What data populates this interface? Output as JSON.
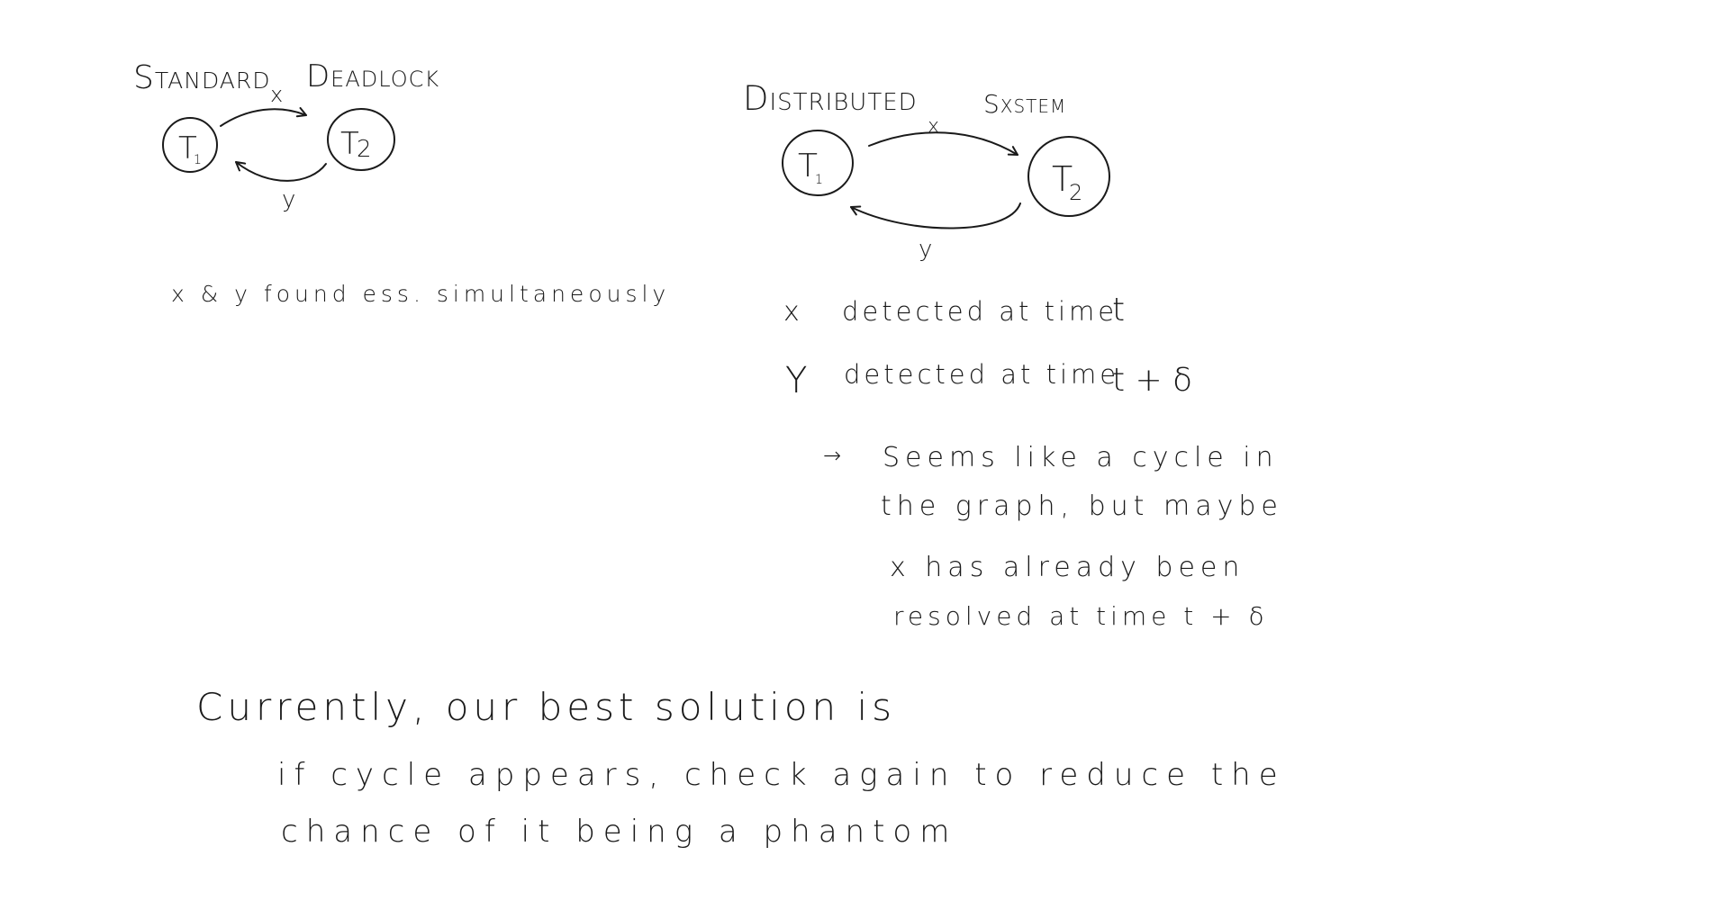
{
  "standard": {
    "title_left": "Standard",
    "title_right": "Deadlock",
    "node1": "T",
    "node1_sub": "1",
    "node2": "T",
    "node2_sub": "2",
    "edge_top": "x",
    "edge_bottom": "y",
    "note": "x & y found ess. simultaneously"
  },
  "distributed": {
    "title_left": "Distributed",
    "title_right": "Sxstem",
    "node1": "T",
    "node1_sub": "1",
    "node2": "T",
    "node2_sub": "2",
    "edge_top": "x",
    "edge_bottom": "y",
    "line_x_var": "x",
    "line_x_text": "detected at time",
    "line_x_time": "t",
    "line_y_var": "Y",
    "line_y_text": "detected at time",
    "line_y_time": "t + δ",
    "arrow": "→",
    "note_line1": "Seems like a cycle in",
    "note_line2": "the graph, but maybe",
    "note_line3": "x has already been",
    "note_line4": "resolved at time t + δ"
  },
  "conclusion": {
    "line1": "Currently, our best solution is",
    "line2": "if cycle appears, check again to reduce the",
    "line3": "chance of it being a phantom"
  }
}
